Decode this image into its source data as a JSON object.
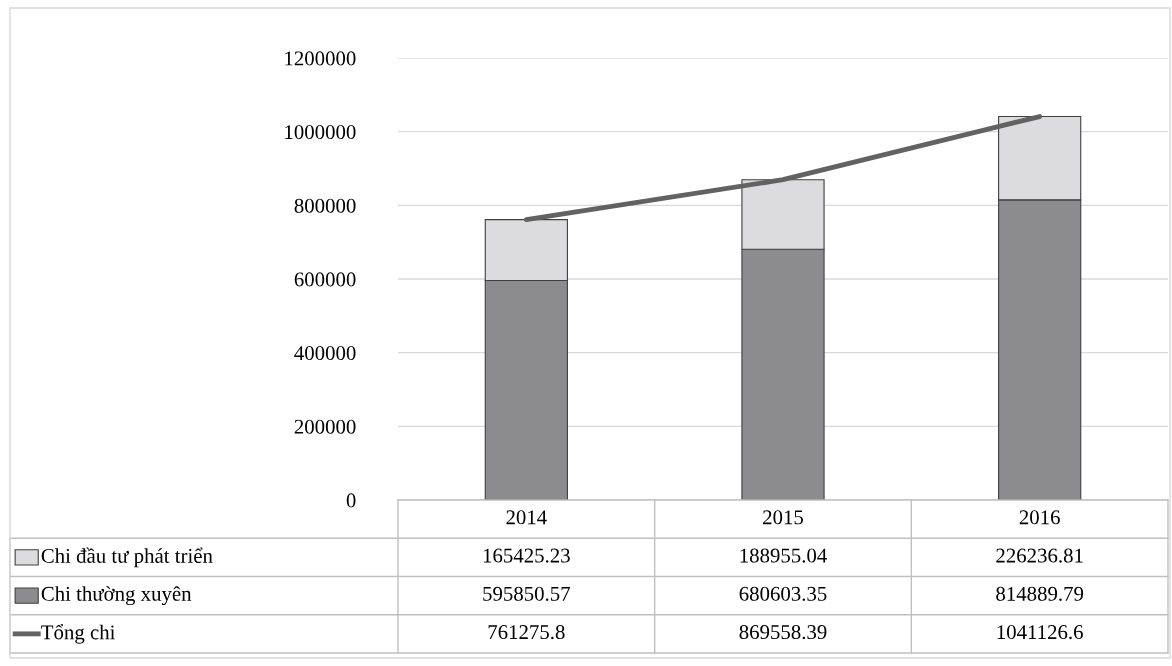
{
  "chart_data": {
    "type": "bar",
    "stacked": true,
    "categories": [
      "2014",
      "2015",
      "2016"
    ],
    "series": [
      {
        "name": "Chi thường xuyên",
        "color": "#8c8c8f",
        "values": [
          595850.57,
          680603.35,
          814889.79
        ]
      },
      {
        "name": "Chi đầu tư phát triển",
        "color": "#dcdcde",
        "values": [
          165425.23,
          188955.04,
          226236.81
        ]
      },
      {
        "name": "Tổng chi",
        "type": "line",
        "color": "#626262",
        "values": [
          761275.8,
          869558.39,
          1041126.6
        ]
      }
    ],
    "ylim": [
      0,
      1200000
    ],
    "yticks": [
      0,
      200000,
      400000,
      600000,
      800000,
      1000000,
      1200000
    ],
    "grid": "y",
    "legend": "bottom left",
    "data_labels": true,
    "line_style": "solid",
    "marker": "none"
  }
}
